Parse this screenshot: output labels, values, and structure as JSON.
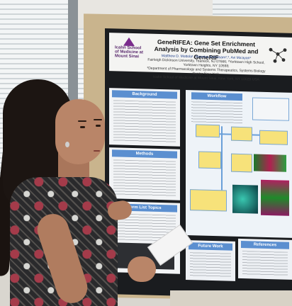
{
  "poster": {
    "title": "GeneRIFEA: Gene Set Enrichment Analysis by Combining PubMed and GeneRIF",
    "authors_line": "Matthew D. Mottola¹, Mounica Kamesam²,³, Avi Ma'ayan¹",
    "affil_line1": "Fairleigh Dickinson University, Teaneck, NJ 07666; ²Yorktown High School, Yorktown Heights, NY 10598;",
    "affil_line2": "³Department of Pharmacology and Systems Therapeutics, Systems Biology Center New York,",
    "affil_line3": "Icahn School of Medicine at Mount Sinai, New York, NY 10029 USA",
    "logo_text": "Icahn School of Medicine at Mount Sinai",
    "sections": {
      "background": "Background",
      "methods": "Methods",
      "term_list": "Term List Topics",
      "workflow": "Workflow",
      "future_work": "Future Work",
      "references": "References"
    }
  },
  "colors": {
    "panel_header": "#5b8fd0",
    "poster_frame": "#1a1c1f",
    "workflow_box": "#f7e27a"
  }
}
